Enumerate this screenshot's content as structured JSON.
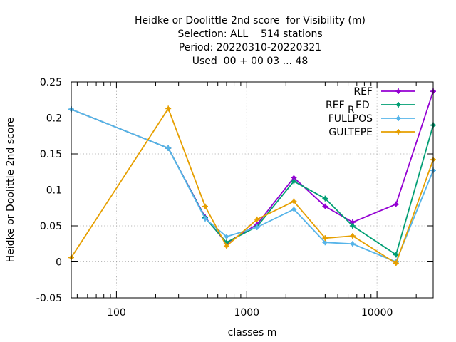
{
  "chart_data": {
    "type": "line",
    "title_lines": [
      "Heidke or Doolittle 2nd score  for Visibility (m)",
      "Selection: ALL    514 stations",
      "Period: 20220310-20220321",
      "Used  00 + 00 03 ... 48"
    ],
    "xlabel": "classes m",
    "ylabel": "Heidke or Doolittle 2nd score",
    "xscale": "log",
    "xlim": [
      45,
      27000
    ],
    "ylim": [
      -0.05,
      0.25
    ],
    "x_ticks": [
      100,
      1000,
      10000
    ],
    "x_tick_labels": [
      "100",
      "1000",
      "10000"
    ],
    "y_ticks": [
      -0.05,
      0,
      0.05,
      0.1,
      0.15,
      0.2,
      0.25
    ],
    "y_tick_labels": [
      "-0.05",
      "0",
      "0.05",
      "0.1",
      "0.15",
      "0.2",
      "0.25"
    ],
    "grid": true,
    "legend_position": "top-right",
    "series": [
      {
        "name": "REF",
        "color": "#9400d3",
        "x": [
          45,
          250,
          480,
          700,
          1200,
          2300,
          4000,
          6500,
          14000,
          27000
        ],
        "y": [
          0.212,
          0.158,
          0.062,
          0.026,
          0.052,
          0.117,
          0.077,
          0.055,
          0.08,
          0.237
        ]
      },
      {
        "name": "REF_RED",
        "legend_main": "REF",
        "legend_sub": "R",
        "legend_tail": "ED",
        "color": "#009e73",
        "x": [
          45,
          250,
          480,
          700,
          1200,
          2300,
          4000,
          6500,
          14000,
          27000
        ],
        "y": [
          0.212,
          0.158,
          0.061,
          0.027,
          0.049,
          0.112,
          0.088,
          0.05,
          0.01,
          0.19
        ]
      },
      {
        "name": "FULLPOS",
        "color": "#56b4e9",
        "x": [
          45,
          250,
          480,
          700,
          1200,
          2300,
          4000,
          6500,
          14000,
          27000
        ],
        "y": [
          0.212,
          0.158,
          0.06,
          0.035,
          0.048,
          0.073,
          0.027,
          0.025,
          0.0,
          0.127
        ]
      },
      {
        "name": "GULTEPE",
        "color": "#e69f00",
        "x": [
          45,
          250,
          480,
          700,
          1200,
          2300,
          4000,
          6500,
          14000,
          27000
        ],
        "y": [
          0.006,
          0.213,
          0.077,
          0.022,
          0.059,
          0.084,
          0.033,
          0.036,
          -0.002,
          0.142
        ]
      }
    ]
  }
}
